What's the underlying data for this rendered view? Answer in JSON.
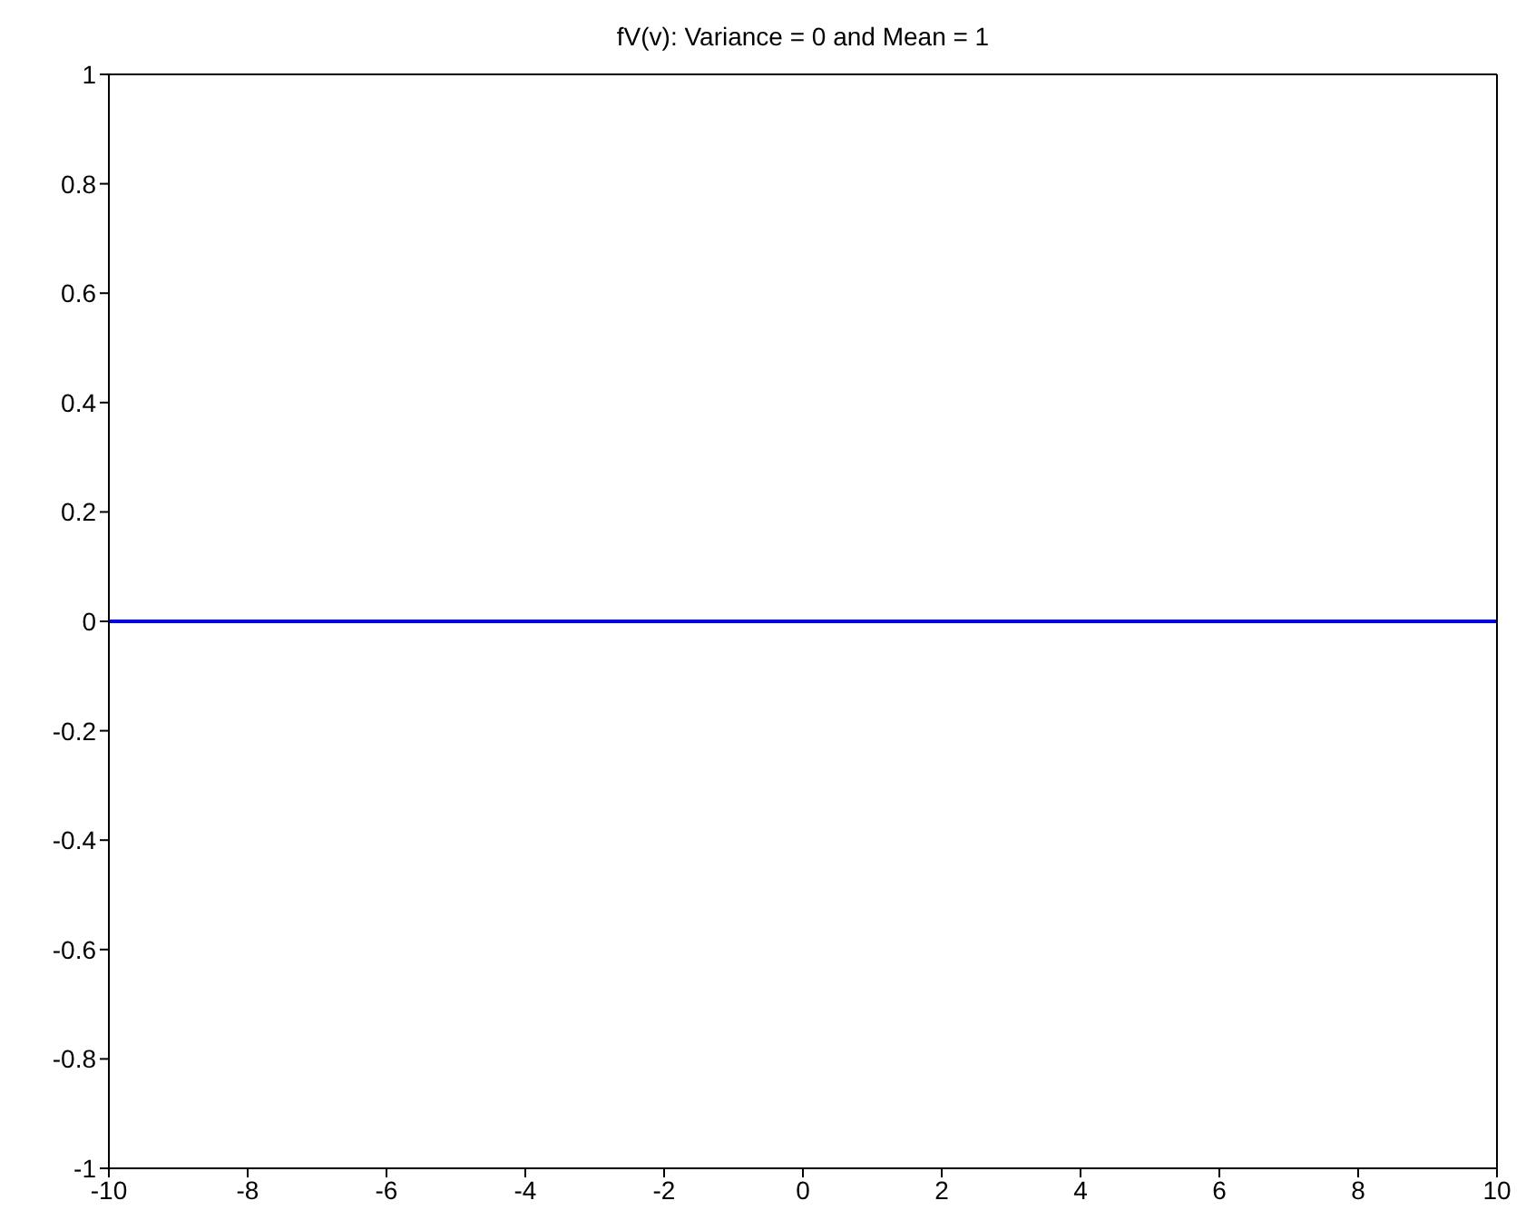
{
  "chart_data": {
    "type": "line",
    "title": "fV(v): Variance = 0 and Mean = 1",
    "series": [
      {
        "color": "#0000ff",
        "x": [
          -10,
          10
        ],
        "values": [
          0,
          0
        ]
      }
    ],
    "xlim": [
      -10,
      10
    ],
    "xticks": [
      -10,
      -8,
      -6,
      -4,
      -2,
      0,
      2,
      4,
      6,
      8,
      10
    ],
    "ylim": [
      -1,
      1
    ],
    "yticks": [
      -1,
      -0.8,
      -0.6,
      -0.4,
      -0.2,
      0,
      0.2,
      0.4,
      0.6,
      0.8,
      1
    ],
    "marker": "none",
    "line_style": "solid"
  }
}
